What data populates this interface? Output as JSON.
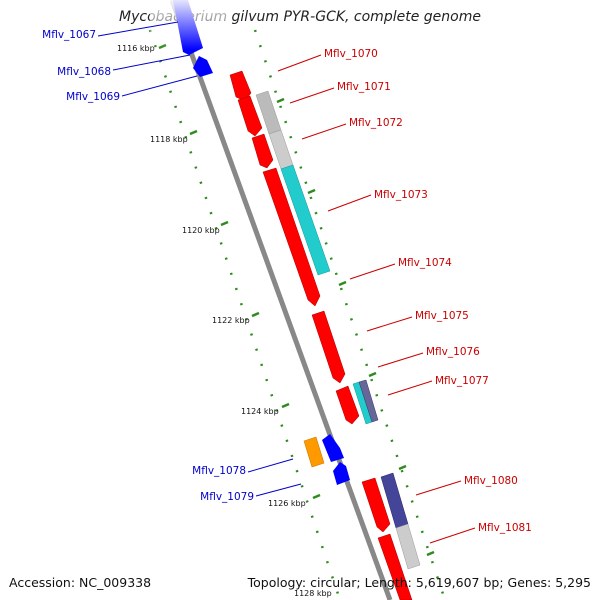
{
  "title": "Mycobacterium gilvum PYR-GCK, complete genome",
  "footer": {
    "accession": "Accession: NC_009338",
    "summary": "Topology: circular; Length: 5,619,607 bp; Genes: 5,295"
  },
  "colors": {
    "backbone": "#888888",
    "label_forward": "#cc0000",
    "label_reverse": "#0000cc",
    "tick": "#2e8b1e",
    "gene_red": "#ff0000",
    "gene_blue": "#0000ff",
    "gene_orange": "#ff9900",
    "gene_cyan": "#22cccc",
    "gene_grey": "#bbbbbb",
    "gene_navy": "#444499"
  },
  "scale_labels": [
    "1116 kbp",
    "1118 kbp",
    "1120 kbp",
    "1122 kbp",
    "1124 kbp",
    "1126 kbp",
    "1128 kbp"
  ],
  "genes": [
    {
      "name": "Mflv_1067",
      "strand": "reverse",
      "color": "gene_blue"
    },
    {
      "name": "Mflv_1068",
      "strand": "reverse",
      "color": "gene_blue"
    },
    {
      "name": "Mflv_1069",
      "strand": "reverse",
      "color": "gene_blue"
    },
    {
      "name": "Mflv_1070",
      "strand": "forward",
      "color": "gene_red"
    },
    {
      "name": "Mflv_1071",
      "strand": "forward",
      "color": "gene_red"
    },
    {
      "name": "Mflv_1072",
      "strand": "forward",
      "color": "gene_red"
    },
    {
      "name": "Mflv_1073",
      "strand": "forward",
      "color": "gene_red"
    },
    {
      "name": "Mflv_1074",
      "strand": "forward",
      "color": "gene_red"
    },
    {
      "name": "Mflv_1075",
      "strand": "forward",
      "color": "gene_red"
    },
    {
      "name": "Mflv_1076",
      "strand": "forward",
      "color": "gene_red"
    },
    {
      "name": "Mflv_1077",
      "strand": "forward",
      "color": "gene_cyan"
    },
    {
      "name": "Mflv_1078",
      "strand": "reverse",
      "color": "gene_orange"
    },
    {
      "name": "Mflv_1079",
      "strand": "reverse",
      "color": "gene_blue"
    },
    {
      "name": "Mflv_1080",
      "strand": "forward",
      "color": "gene_red"
    },
    {
      "name": "Mflv_1081",
      "strand": "forward",
      "color": "gene_red"
    }
  ]
}
